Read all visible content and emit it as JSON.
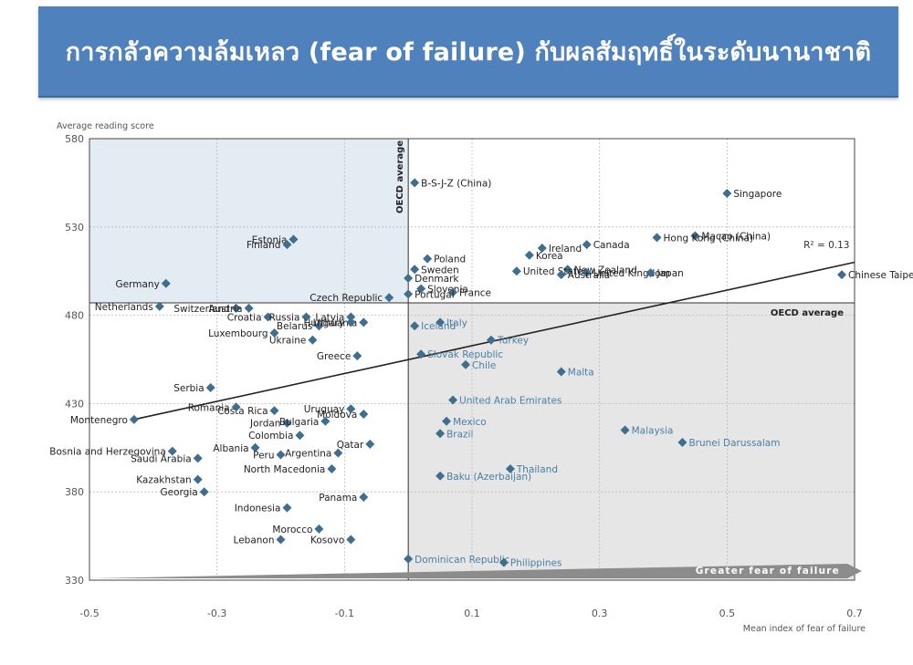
{
  "slide_title": "การกลัวความล้มเหลว (fear of failure) กับผลสัมฤทธิ์ในระดับนานาชาติ",
  "colors": {
    "title_bg": "#4f81bd",
    "point": "#3f6e8e",
    "label_blue": "#4a7ea6",
    "label_dark": "#222222",
    "shade_blue": "#e3ebf3",
    "shade_grey": "#e6e6e6",
    "arrow": "#8c8c8c"
  },
  "chart_data": {
    "type": "scatter",
    "xlabel": "Mean index of fear of failure",
    "ylabel": "Average reading score",
    "xlim": [
      -0.5,
      0.7
    ],
    "ylim": [
      330,
      580
    ],
    "x_ticks": [
      "-0.5",
      "-0.3",
      "-0.1",
      "0.1",
      "0.3",
      "0.5",
      "0.7"
    ],
    "y_ticks": [
      "330",
      "380",
      "430",
      "480",
      "530",
      "580"
    ],
    "oecd_average_x": 0.0,
    "oecd_average_y": 487,
    "oecd_average_label": "OECD average",
    "oecd_average_label_vertical": "OECD average",
    "regression": {
      "label": "R² = 0.13",
      "x": [
        -0.43,
        0.7
      ],
      "y": [
        421,
        510
      ]
    },
    "arrow_label": "Greater fear of failure",
    "grid": true,
    "points": [
      {
        "name": "B-S-J-Z (China)",
        "x": 0.01,
        "y": 555
      },
      {
        "name": "Singapore",
        "x": 0.5,
        "y": 549
      },
      {
        "name": "Macao (China)",
        "x": 0.45,
        "y": 525
      },
      {
        "name": "Hong Kong (China)",
        "x": 0.39,
        "y": 524
      },
      {
        "name": "Estonia",
        "x": -0.18,
        "y": 523
      },
      {
        "name": "Canada",
        "x": 0.28,
        "y": 520
      },
      {
        "name": "Finland",
        "x": -0.19,
        "y": 520
      },
      {
        "name": "Ireland",
        "x": 0.21,
        "y": 518
      },
      {
        "name": "Korea",
        "x": 0.19,
        "y": 514
      },
      {
        "name": "Poland",
        "x": 0.03,
        "y": 512
      },
      {
        "name": "Sweden",
        "x": 0.01,
        "y": 506
      },
      {
        "name": "New Zealand",
        "x": 0.25,
        "y": 506
      },
      {
        "name": "United States",
        "x": 0.17,
        "y": 505
      },
      {
        "name": "United Kingdom",
        "x": 0.28,
        "y": 504
      },
      {
        "name": "Japan",
        "x": 0.38,
        "y": 504
      },
      {
        "name": "Australia",
        "x": 0.24,
        "y": 503
      },
      {
        "name": "Chinese Taipei",
        "x": 0.68,
        "y": 503
      },
      {
        "name": "Denmark",
        "x": 0.0,
        "y": 501
      },
      {
        "name": "Germany",
        "x": -0.38,
        "y": 498
      },
      {
        "name": "Slovenia",
        "x": 0.02,
        "y": 495
      },
      {
        "name": "France",
        "x": 0.07,
        "y": 493
      },
      {
        "name": "Portugal",
        "x": 0.0,
        "y": 492
      },
      {
        "name": "Czech Republic",
        "x": -0.03,
        "y": 490
      },
      {
        "name": "Netherlands",
        "x": -0.39,
        "y": 485
      },
      {
        "name": "Switzerland",
        "x": -0.27,
        "y": 484
      },
      {
        "name": "Austria",
        "x": -0.25,
        "y": 484
      },
      {
        "name": "Croatia",
        "x": -0.22,
        "y": 479
      },
      {
        "name": "Latvia",
        "x": -0.09,
        "y": 479
      },
      {
        "name": "Russia",
        "x": -0.16,
        "y": 479
      },
      {
        "name": "Italy",
        "x": 0.05,
        "y": 476
      },
      {
        "name": "Lithuania",
        "x": -0.07,
        "y": 476
      },
      {
        "name": "Belarus",
        "x": -0.14,
        "y": 474
      },
      {
        "name": "Iceland",
        "x": 0.01,
        "y": 474
      },
      {
        "name": "Hungary",
        "x": -0.09,
        "y": 476
      },
      {
        "name": "Ukraine",
        "x": -0.15,
        "y": 466
      },
      {
        "name": "Luxembourg",
        "x": -0.21,
        "y": 470
      },
      {
        "name": "Turkey",
        "x": 0.13,
        "y": 466
      },
      {
        "name": "Greece",
        "x": -0.08,
        "y": 457
      },
      {
        "name": "Slovak Republic",
        "x": 0.02,
        "y": 458
      },
      {
        "name": "Chile",
        "x": 0.09,
        "y": 452
      },
      {
        "name": "Malta",
        "x": 0.24,
        "y": 448
      },
      {
        "name": "Serbia",
        "x": -0.31,
        "y": 439
      },
      {
        "name": "United Arab Emirates",
        "x": 0.07,
        "y": 432
      },
      {
        "name": "Uruguay",
        "x": -0.09,
        "y": 427
      },
      {
        "name": "Costa Rica",
        "x": -0.21,
        "y": 426
      },
      {
        "name": "Romania",
        "x": -0.27,
        "y": 428
      },
      {
        "name": "Moldova",
        "x": -0.07,
        "y": 424
      },
      {
        "name": "Montenegro",
        "x": -0.43,
        "y": 421
      },
      {
        "name": "Mexico",
        "x": 0.06,
        "y": 420
      },
      {
        "name": "Jordan",
        "x": -0.19,
        "y": 419
      },
      {
        "name": "Bulgaria",
        "x": -0.13,
        "y": 420
      },
      {
        "name": "Malaysia",
        "x": 0.34,
        "y": 415
      },
      {
        "name": "Colombia",
        "x": -0.17,
        "y": 412
      },
      {
        "name": "Brazil",
        "x": 0.05,
        "y": 413
      },
      {
        "name": "Brunei Darussalam",
        "x": 0.43,
        "y": 408
      },
      {
        "name": "Argentina",
        "x": -0.11,
        "y": 402
      },
      {
        "name": "Qatar",
        "x": -0.06,
        "y": 407
      },
      {
        "name": "Albania",
        "x": -0.24,
        "y": 405
      },
      {
        "name": "Bosnia and Herzegovina",
        "x": -0.37,
        "y": 403
      },
      {
        "name": "Peru",
        "x": -0.2,
        "y": 401
      },
      {
        "name": "Saudi Arabia",
        "x": -0.33,
        "y": 399
      },
      {
        "name": "Thailand",
        "x": 0.16,
        "y": 393
      },
      {
        "name": "North Macedonia",
        "x": -0.12,
        "y": 393
      },
      {
        "name": "Baku (Azerbaijan)",
        "x": 0.05,
        "y": 389
      },
      {
        "name": "Kazakhstan",
        "x": -0.33,
        "y": 387
      },
      {
        "name": "Georgia",
        "x": -0.32,
        "y": 380
      },
      {
        "name": "Panama",
        "x": -0.07,
        "y": 377
      },
      {
        "name": "Indonesia",
        "x": -0.19,
        "y": 371
      },
      {
        "name": "Morocco",
        "x": -0.14,
        "y": 359
      },
      {
        "name": "Lebanon",
        "x": -0.2,
        "y": 353
      },
      {
        "name": "Kosovo",
        "x": -0.09,
        "y": 353
      },
      {
        "name": "Dominican Republic",
        "x": 0.0,
        "y": 342
      },
      {
        "name": "Philippines",
        "x": 0.15,
        "y": 340
      }
    ]
  }
}
